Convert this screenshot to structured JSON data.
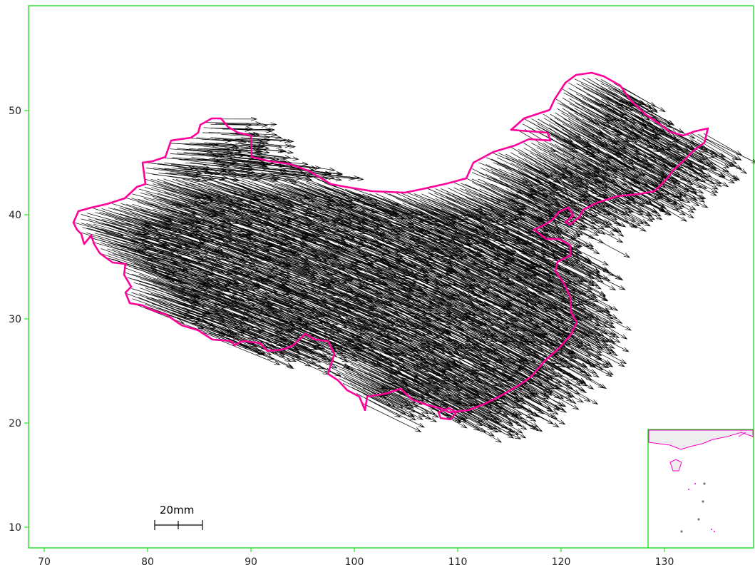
{
  "map": {
    "x_ticks": [
      "70",
      "80",
      "90",
      "100",
      "110",
      "120",
      "130"
    ],
    "y_ticks": [
      "50",
      "40",
      "30",
      "20",
      "10"
    ],
    "x_range": [
      69,
      138
    ],
    "y_range": [
      8,
      57
    ],
    "colors": {
      "frame": "#00dd00",
      "border": "#ff0099",
      "arrows": "#000000",
      "inset_sea": "#eeeeee"
    }
  },
  "scale_bar": {
    "label": "20mm"
  },
  "inset": {
    "name": "south-china-sea-inset"
  }
}
